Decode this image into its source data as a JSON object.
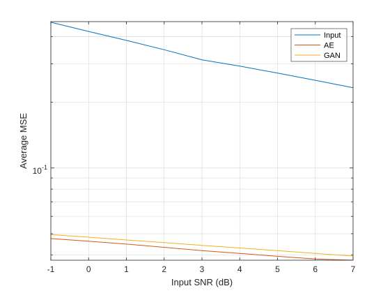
{
  "chart_data": {
    "type": "line",
    "title": "",
    "xlabel": "Input SNR (dB)",
    "ylabel": "Average MSE",
    "x_ticks": [
      "-1",
      "0",
      "1",
      "2",
      "3",
      "4",
      "5",
      "6",
      "7"
    ],
    "y_tick_label": {
      "base": "10",
      "exponent": "-1"
    },
    "xlim": [
      -1,
      7
    ],
    "ylim": [
      0.0378,
      0.468
    ],
    "y_scale": "log",
    "grid": true,
    "legend_position": "top-right",
    "series": [
      {
        "name": "Input",
        "color": "#0072BD",
        "x": [
          -1,
          0,
          1,
          2,
          3,
          4,
          5,
          6,
          7
        ],
        "y": [
          0.465,
          0.422,
          0.384,
          0.348,
          0.313,
          0.293,
          0.272,
          0.252,
          0.233
        ]
      },
      {
        "name": "AE",
        "color": "#D95319",
        "x": [
          -1,
          0,
          1,
          2,
          3,
          4,
          5,
          6,
          7
        ],
        "y": [
          0.0475,
          0.0462,
          0.0448,
          0.0433,
          0.0418,
          0.0406,
          0.0394,
          0.0383,
          0.0378
        ]
      },
      {
        "name": "GAN",
        "color": "#EDB120",
        "x": [
          -1,
          0,
          1,
          2,
          3,
          4,
          5,
          6,
          7
        ],
        "y": [
          0.0495,
          0.0482,
          0.0468,
          0.0455,
          0.0442,
          0.043,
          0.0418,
          0.0406,
          0.0395
        ]
      }
    ]
  }
}
